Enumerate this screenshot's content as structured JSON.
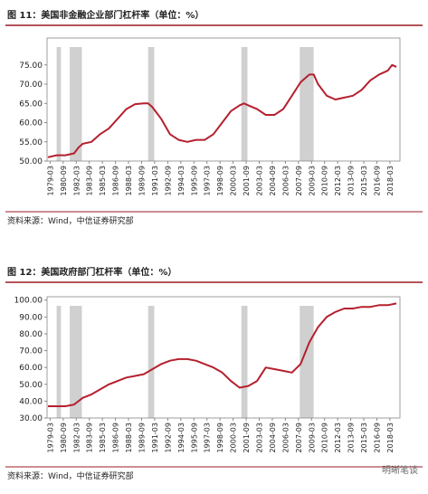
{
  "chart_data": [
    {
      "type": "line",
      "title": "图 11：美国非金融企业部门杠杆率（单位：%）",
      "source": "资料来源：Wind，中信证券研究部",
      "color": "#b5202e",
      "xlim": [
        1978.9,
        2019.4
      ],
      "ylim": [
        50,
        82
      ],
      "yticks": [
        {
          "value": 50,
          "label": "50.00"
        },
        {
          "value": 55,
          "label": "55.00"
        },
        {
          "value": 60,
          "label": "60.00"
        },
        {
          "value": 65,
          "label": "65.00"
        },
        {
          "value": 70,
          "label": "70.00"
        },
        {
          "value": 75,
          "label": "75.00"
        }
      ],
      "xticks": [
        {
          "value": 1979.25,
          "label": "1979-03"
        },
        {
          "value": 1980.75,
          "label": "1980-09"
        },
        {
          "value": 1982.25,
          "label": "1982-03"
        },
        {
          "value": 1983.75,
          "label": "1983-09"
        },
        {
          "value": 1985.25,
          "label": "1985-03"
        },
        {
          "value": 1986.75,
          "label": "1986-09"
        },
        {
          "value": 1988.25,
          "label": "1988-03"
        },
        {
          "value": 1989.75,
          "label": "1989-09"
        },
        {
          "value": 1991.25,
          "label": "1991-03"
        },
        {
          "value": 1992.75,
          "label": "1992-09"
        },
        {
          "value": 1994.25,
          "label": "1994-03"
        },
        {
          "value": 1995.75,
          "label": "1995-09"
        },
        {
          "value": 1997.25,
          "label": "1997-03"
        },
        {
          "value": 1998.75,
          "label": "1998-09"
        },
        {
          "value": 2000.25,
          "label": "2000-03"
        },
        {
          "value": 2001.75,
          "label": "2001-09"
        },
        {
          "value": 2003.25,
          "label": "2003-03"
        },
        {
          "value": 2004.75,
          "label": "2004-09"
        },
        {
          "value": 2006.25,
          "label": "2006-03"
        },
        {
          "value": 2007.75,
          "label": "2007-09"
        },
        {
          "value": 2009.25,
          "label": "2009-03"
        },
        {
          "value": 2010.75,
          "label": "2010-09"
        },
        {
          "value": 2012.25,
          "label": "2012-03"
        },
        {
          "value": 2013.75,
          "label": "2013-09"
        },
        {
          "value": 2015.25,
          "label": "2015-03"
        },
        {
          "value": 2016.75,
          "label": "2016-09"
        },
        {
          "value": 2018.25,
          "label": "2018-03"
        }
      ],
      "shaded": [
        [
          1980.0,
          1980.5
        ],
        [
          1981.5,
          1982.9
        ],
        [
          1990.5,
          1991.2
        ],
        [
          2001.2,
          2001.9
        ],
        [
          2007.9,
          2009.5
        ]
      ],
      "x": [
        1979,
        1980,
        1981,
        1982,
        1982.5,
        1983,
        1984,
        1985,
        1986,
        1987,
        1988,
        1989,
        1990,
        1990.5,
        1991,
        1992,
        1993,
        1994,
        1995,
        1996,
        1997,
        1998,
        1999,
        2000,
        2001,
        2001.5,
        2002,
        2003,
        2004,
        2005,
        2006,
        2007,
        2008,
        2009,
        2009.5,
        2010,
        2011,
        2012,
        2013,
        2014,
        2015,
        2016,
        2017,
        2018,
        2018.5,
        2019
      ],
      "values": [
        51,
        51.5,
        51.5,
        52,
        53.5,
        54.5,
        55,
        57,
        58.5,
        61,
        63.5,
        64.8,
        65,
        65,
        64,
        61,
        57,
        55.5,
        55,
        55.5,
        55.5,
        57,
        60,
        63,
        64.5,
        65,
        64.5,
        63.5,
        62,
        62,
        63.5,
        67,
        70.5,
        72.5,
        72.5,
        70,
        67,
        66,
        66.5,
        67,
        68.5,
        71,
        72.5,
        73.5,
        75,
        74.5
      ]
    },
    {
      "type": "line",
      "title": "图 12：美国政府部门杠杆率（单位：%）",
      "source": "资料来源：Wind，中信证券研究部",
      "color": "#b5202e",
      "xlim": [
        1978.9,
        2019.4
      ],
      "ylim": [
        30,
        102
      ],
      "yticks": [
        {
          "value": 30,
          "label": "30.00"
        },
        {
          "value": 40,
          "label": "40.00"
        },
        {
          "value": 50,
          "label": "50.00"
        },
        {
          "value": 60,
          "label": "60.00"
        },
        {
          "value": 70,
          "label": "70.00"
        },
        {
          "value": 80,
          "label": "80.00"
        },
        {
          "value": 90,
          "label": "90.00"
        },
        {
          "value": 100,
          "label": "100.00"
        }
      ],
      "xticks": [
        {
          "value": 1979.25,
          "label": "1979-03"
        },
        {
          "value": 1980.75,
          "label": "1980-09"
        },
        {
          "value": 1982.25,
          "label": "1982-03"
        },
        {
          "value": 1983.75,
          "label": "1983-09"
        },
        {
          "value": 1985.25,
          "label": "1985-03"
        },
        {
          "value": 1986.75,
          "label": "1986-09"
        },
        {
          "value": 1988.25,
          "label": "1988-03"
        },
        {
          "value": 1989.75,
          "label": "1989-09"
        },
        {
          "value": 1991.25,
          "label": "1991-03"
        },
        {
          "value": 1992.75,
          "label": "1992-09"
        },
        {
          "value": 1994.25,
          "label": "1994-03"
        },
        {
          "value": 1995.75,
          "label": "1995-09"
        },
        {
          "value": 1997.25,
          "label": "1997-03"
        },
        {
          "value": 1998.75,
          "label": "1998-09"
        },
        {
          "value": 2000.25,
          "label": "2000-03"
        },
        {
          "value": 2001.75,
          "label": "2001-09"
        },
        {
          "value": 2003.25,
          "label": "2003-03"
        },
        {
          "value": 2004.75,
          "label": "2004-09"
        },
        {
          "value": 2006.25,
          "label": "2006-03"
        },
        {
          "value": 2007.75,
          "label": "2007-09"
        },
        {
          "value": 2009.25,
          "label": "2009-03"
        },
        {
          "value": 2010.75,
          "label": "2010-09"
        },
        {
          "value": 2012.25,
          "label": "2012-03"
        },
        {
          "value": 2013.75,
          "label": "2013-09"
        },
        {
          "value": 2015.25,
          "label": "2015-03"
        },
        {
          "value": 2016.75,
          "label": "2016-09"
        },
        {
          "value": 2018.25,
          "label": "2018-03"
        }
      ],
      "shaded": [
        [
          1980.0,
          1980.5
        ],
        [
          1981.5,
          1982.9
        ],
        [
          1990.5,
          1991.2
        ],
        [
          2001.2,
          2001.9
        ],
        [
          2007.9,
          2009.5
        ]
      ],
      "x": [
        1979,
        1980,
        1981,
        1982,
        1983,
        1984,
        1985,
        1986,
        1987,
        1988,
        1989,
        1990,
        1991,
        1992,
        1993,
        1994,
        1995,
        1996,
        1997,
        1998,
        1999,
        2000,
        2001,
        2002,
        2003,
        2004,
        2005,
        2006,
        2007,
        2008,
        2009,
        2010,
        2011,
        2012,
        2013,
        2014,
        2015,
        2016,
        2017,
        2018,
        2019
      ],
      "values": [
        37,
        37,
        37,
        38,
        42,
        44,
        47,
        50,
        52,
        54,
        55,
        56,
        59,
        62,
        64,
        65,
        65,
        64,
        62,
        60,
        57,
        52,
        48,
        49,
        52,
        60,
        59,
        58,
        57,
        62,
        75,
        84,
        90,
        93,
        95,
        95,
        96,
        96,
        97,
        97,
        98
      ]
    }
  ],
  "watermark": "明晰笔谈"
}
